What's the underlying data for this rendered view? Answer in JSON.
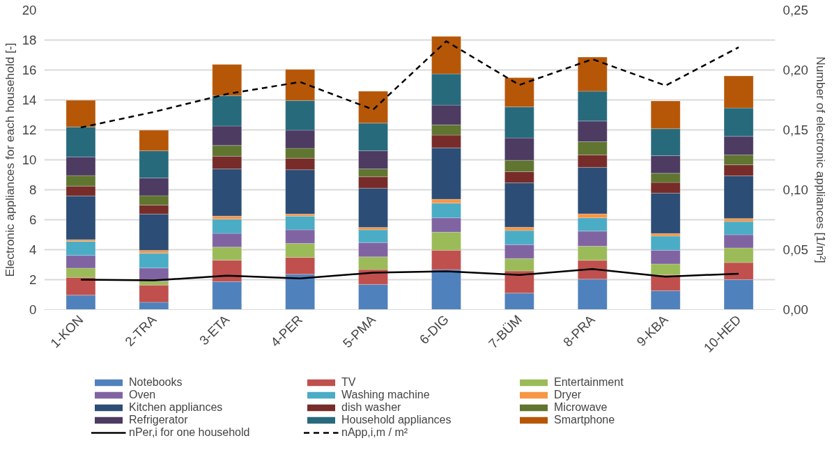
{
  "chart_data": {
    "type": "bar",
    "stacked": true,
    "ylabel": "Electronic appliances for each household [-]",
    "y2label": "Number of electronic appliances [1/m²]",
    "categories": [
      "1-KON",
      "2-TRA",
      "3-ETA",
      "4-PER",
      "5-PMA",
      "6-DIG",
      "7-BÜM",
      "8-PRA",
      "9-KBA",
      "10-HED"
    ],
    "series": [
      {
        "name": "Notebooks",
        "color": "#4f81bd",
        "values": [
          0.96,
          0.49,
          1.87,
          2.36,
          1.68,
          2.67,
          1.1,
          2.03,
          1.26,
          2.0
        ]
      },
      {
        "name": "TV",
        "color": "#c0504d",
        "values": [
          1.19,
          1.15,
          1.43,
          1.13,
          0.99,
          1.29,
          1.48,
          1.26,
          1.05,
          1.14
        ]
      },
      {
        "name": "Entertainment",
        "color": "#9bbb59",
        "values": [
          0.62,
          0.26,
          0.87,
          0.93,
          0.85,
          1.21,
          0.83,
          0.94,
          0.74,
          0.98
        ]
      },
      {
        "name": "Oven",
        "color": "#8064a2",
        "values": [
          0.85,
          0.88,
          0.92,
          0.91,
          0.96,
          0.96,
          0.93,
          1.01,
          0.91,
          0.88
        ]
      },
      {
        "name": "Washing machine",
        "color": "#4bacc6",
        "values": [
          0.94,
          0.99,
          0.95,
          0.91,
          0.85,
          0.98,
          0.94,
          0.89,
          0.95,
          0.88
        ]
      },
      {
        "name": "Dryer",
        "color": "#f79646",
        "values": [
          0.11,
          0.18,
          0.2,
          0.14,
          0.16,
          0.26,
          0.22,
          0.27,
          0.17,
          0.2
        ]
      },
      {
        "name": "Kitchen appliances",
        "color": "#2c4d75",
        "values": [
          2.92,
          2.43,
          3.15,
          2.96,
          2.62,
          3.43,
          2.96,
          3.1,
          2.7,
          2.85
        ]
      },
      {
        "name": "dish washer",
        "color": "#772c2a",
        "values": [
          0.66,
          0.6,
          0.85,
          0.77,
          0.76,
          0.85,
          0.75,
          0.83,
          0.71,
          0.74
        ]
      },
      {
        "name": "Microwave",
        "color": "#5f7530",
        "values": [
          0.7,
          0.63,
          0.72,
          0.66,
          0.53,
          0.69,
          0.76,
          0.88,
          0.61,
          0.66
        ]
      },
      {
        "name": "Refrigerator",
        "color": "#4d3b62",
        "values": [
          1.25,
          1.18,
          1.3,
          1.21,
          1.21,
          1.31,
          1.49,
          1.38,
          1.18,
          1.24
        ]
      },
      {
        "name": "Household appliances",
        "color": "#276a7c",
        "values": [
          2.0,
          1.82,
          2.03,
          1.98,
          1.84,
          2.09,
          2.08,
          1.99,
          1.8,
          1.89
        ]
      },
      {
        "name": "Smartphone",
        "color": "#b65708",
        "values": [
          1.78,
          1.37,
          2.08,
          2.08,
          2.13,
          2.5,
          1.95,
          2.28,
          1.85,
          2.14
        ]
      },
      {
        "name": "nPer,i for one household",
        "type": "line",
        "axis": "y2",
        "color": "#000000",
        "line_style": "solid",
        "values": [
          0.025,
          0.0244,
          0.0283,
          0.026,
          0.0308,
          0.032,
          0.0289,
          0.0338,
          0.0275,
          0.03
        ]
      },
      {
        "name": "nApp,i,m / m²",
        "type": "line",
        "axis": "y2",
        "color": "#000000",
        "line_style": "dashed",
        "values": [
          0.152,
          0.165,
          0.18,
          0.19,
          0.167,
          0.224,
          0.1875,
          0.209,
          0.187,
          0.219
        ]
      }
    ],
    "ylim": [
      0,
      20
    ],
    "yticks": [
      0,
      2,
      4,
      6,
      8,
      10,
      12,
      14,
      16,
      18,
      20
    ],
    "y2lim": [
      0,
      0.25
    ],
    "y2ticks": [
      {
        "value": 0,
        "label": "0,00"
      },
      {
        "value": 0.05,
        "label": "0,05"
      },
      {
        "value": 0.1,
        "label": "0,10"
      },
      {
        "value": 0.15,
        "label": "0,15"
      },
      {
        "value": 0.2,
        "label": "0,20"
      },
      {
        "value": 0.25,
        "label": "0,25"
      }
    ],
    "grid": "y",
    "legend": "bottom",
    "marker": "none"
  }
}
